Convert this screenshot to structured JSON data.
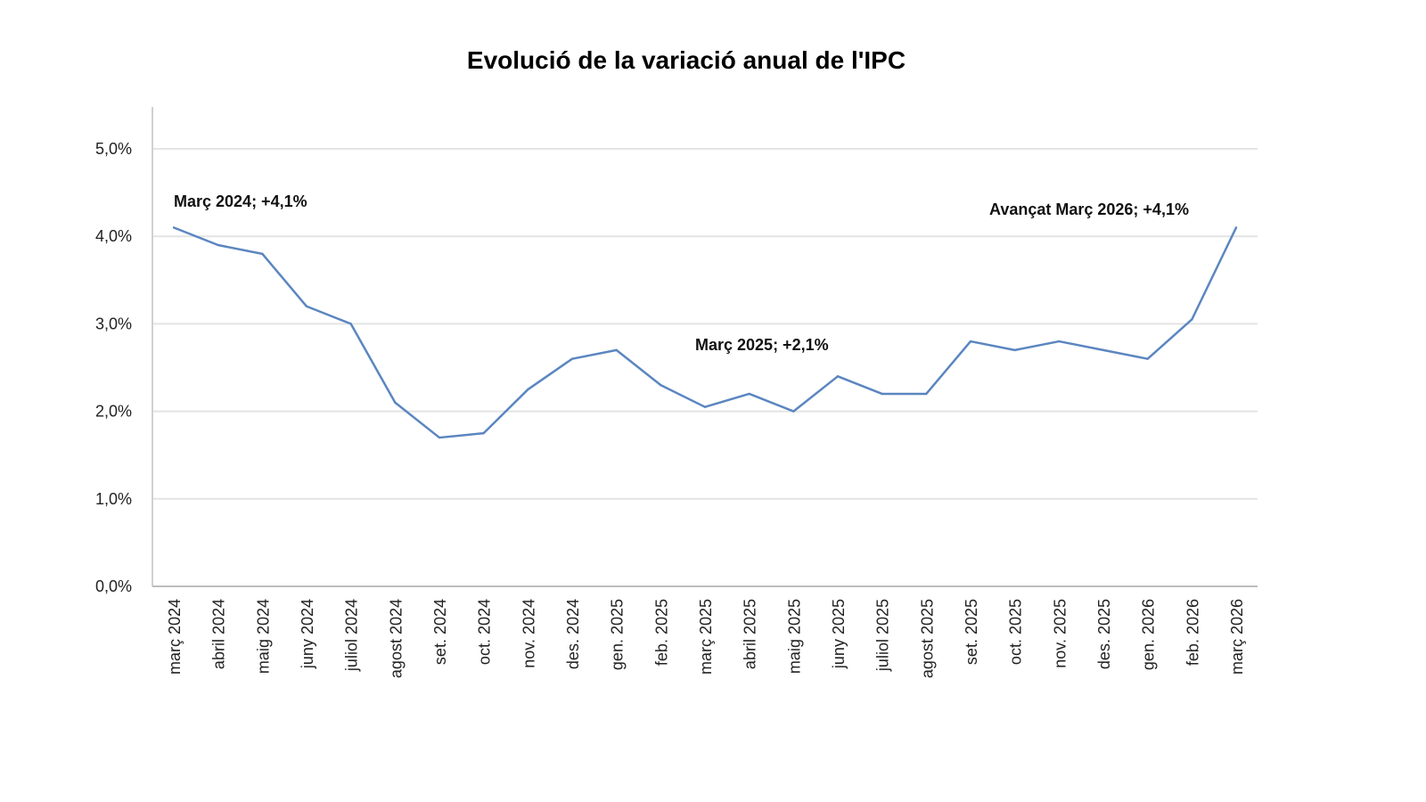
{
  "chart_data": {
    "type": "line",
    "title": "Evolució de la variació anual de l'IPC",
    "xlabel": "",
    "ylabel": "",
    "ylim": [
      0,
      5
    ],
    "y_ticks": [
      "0,0%",
      "1,0%",
      "2,0%",
      "3,0%",
      "4,0%",
      "5,0%"
    ],
    "y_tick_values": [
      0,
      1,
      2,
      3,
      4,
      5
    ],
    "grid": true,
    "legend": "none",
    "line_color": "#5b86c0",
    "categories": [
      "març 2024",
      "abril 2024",
      "maig 2024",
      "juny 2024",
      "juliol 2024",
      "agost 2024",
      "set. 2024",
      "oct. 2024",
      "nov. 2024",
      "des. 2024",
      "gen. 2025",
      "feb. 2025",
      "març 2025",
      "abril 2025",
      "maig 2025",
      "juny 2025",
      "juliol 2025",
      "agost 2025",
      "set. 2025",
      "oct. 2025",
      "nov. 2025",
      "des. 2025",
      "gen. 2026",
      "feb. 2026",
      "març 2026"
    ],
    "series": [
      {
        "name": "IPC",
        "values": [
          4.1,
          3.9,
          3.8,
          3.2,
          3.0,
          2.1,
          1.7,
          1.75,
          2.25,
          2.6,
          2.7,
          2.3,
          2.05,
          2.2,
          2.0,
          2.4,
          2.2,
          2.2,
          2.8,
          2.7,
          2.8,
          2.7,
          2.6,
          3.05,
          4.1
        ]
      }
    ],
    "annotations": [
      {
        "text": "Març 2024; +4,1%",
        "index": 0
      },
      {
        "text": "Març 2025;  +2,1%",
        "index": 12
      },
      {
        "text": "Avançat Març 2026; +4,1%",
        "index": 24
      }
    ]
  }
}
